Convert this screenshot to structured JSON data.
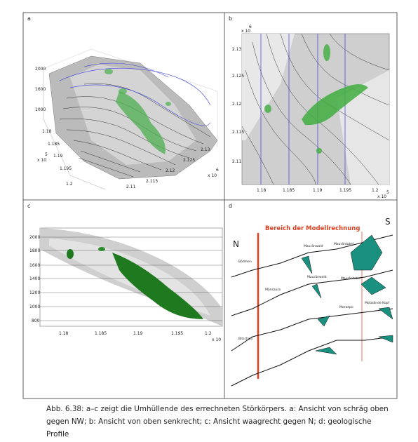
{
  "figure": {
    "panels": [
      {
        "label": "a",
        "texts": [
          "2000",
          "1600",
          "1000",
          "1.18",
          "1.185",
          "1.19",
          "1.195",
          "1.2",
          "x 10",
          "5",
          "2.11",
          "2.115",
          "2.12",
          "2.125",
          "2.13",
          "x 10",
          "6"
        ]
      },
      {
        "label": "b",
        "texts": [
          "x 10",
          "6",
          "2.13",
          "2.125",
          "2.12",
          "2.115",
          "2.11",
          "1.18",
          "1.185",
          "1.19",
          "1.195",
          "1.2",
          "x 10",
          "5"
        ]
      },
      {
        "label": "c",
        "texts": [
          "2000",
          "1800",
          "1600",
          "1400",
          "1200",
          "1000",
          "800",
          "1.18",
          "1.185",
          "1.19",
          "1.195",
          "1.2",
          "x 10"
        ]
      },
      {
        "label": "d",
        "texts": [
          "Bereich der Modellrechnung",
          "S",
          "N",
          "Mauränwald",
          "Mauräntobel",
          "Bödmen",
          "Mauränwald",
          "Mansaura",
          "Mauräntobel",
          "Moradpo",
          "Motadinde Kopf",
          "Bitschwil"
        ]
      }
    ],
    "caption": [
      "Abb. 6.38: a–c zeigt die Umhüllende des errechneten Störkörpers. a: Ansicht von schräg oben",
      "gegen NW; b: Ansicht von oben senkrecht; c: Ansicht waagrecht gegen N; d: geologische",
      "Profile"
    ]
  }
}
